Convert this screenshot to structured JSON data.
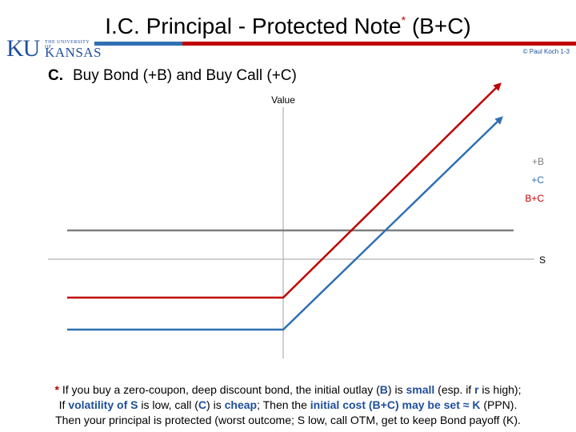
{
  "slide": {
    "title": "I.C.  Principal - Protected Note",
    "title_mark": "*",
    "title_suffix": "  (B+C)",
    "logo": {
      "ku": "KU",
      "university": "THE UNIVERSITY OF",
      "kansas": "KANSAS"
    },
    "copyright": "© Paul Koch 1-3",
    "subtitle_letter": "C.",
    "subtitle": "Buy Bond (+B)  and  Buy Call (+C)"
  },
  "diagram": {
    "y_axis_label": "Value",
    "x_axis_label": "S",
    "legend": [
      {
        "label": "+B",
        "color": "#7f7f7f"
      },
      {
        "label": "+C",
        "color": "#2f6fb3"
      },
      {
        "label": "B+C",
        "color": "#c00000"
      }
    ],
    "colors": {
      "bond": "#7f7f7f",
      "call": "#2f6fb3",
      "combined": "#c00000",
      "axis": "#bfbfbf"
    }
  },
  "note": {
    "line1": {
      "star": "*",
      "a": " If you buy a  zero-coupon, deep discount bond,  the initial outlay (",
      "b": "B",
      "c": ") is ",
      "d": "small",
      "e": " (esp. if  ",
      "f": "r",
      "g": "  is high);"
    },
    "line2": {
      "a": "If  ",
      "b": "volatility of S",
      "c": " is low, call (",
      "d": "C",
      "e": ") is ",
      "f": "cheap",
      "g": ";  Then the ",
      "h": "initial cost (B+C) may be set ≈ K",
      "i": "   (PPN)."
    },
    "line3": "Then your principal is protected (worst outcome;  S low, call OTM, get to keep Bond payoff (K)."
  }
}
